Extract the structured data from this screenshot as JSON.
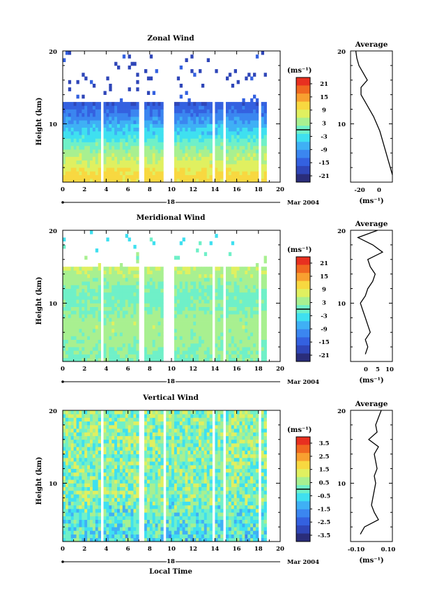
{
  "panels": [
    {
      "title": "Zonal Wind",
      "ylabel": "Height (km)",
      "y_ticks": [
        "20",
        "10"
      ],
      "x_ticks": [
        "0",
        "2",
        "4",
        "6",
        "8",
        "10",
        "12",
        "14",
        "16",
        "18",
        "20"
      ],
      "date_day": "18",
      "date_label": "Mar 2004",
      "colorbar_unit": "(ms⁻¹)",
      "colorbar_ticks": [
        "21",
        "15",
        "9",
        "3",
        "-3",
        "-9",
        "-15",
        "-21"
      ],
      "avg_title": "Average",
      "avg_y_ticks": [
        "20",
        "10"
      ],
      "avg_x_ticks": [
        "-20",
        "0"
      ],
      "avg_xlabel": "(ms⁻¹)"
    },
    {
      "title": "Meridional Wind",
      "ylabel": "Height (km)",
      "y_ticks": [
        "20",
        "10"
      ],
      "x_ticks": [
        "0",
        "2",
        "4",
        "6",
        "8",
        "10",
        "12",
        "14",
        "16",
        "18",
        "20"
      ],
      "date_day": "18",
      "date_label": "Mar 2004",
      "colorbar_unit": "(ms⁻¹)",
      "colorbar_ticks": [
        "21",
        "15",
        "9",
        "3",
        "-3",
        "-9",
        "-15",
        "-21"
      ],
      "avg_title": "Average",
      "avg_y_ticks": [
        "20",
        "10"
      ],
      "avg_x_ticks": [
        "0",
        "5",
        "10"
      ],
      "avg_xlabel": "(ms⁻¹)"
    },
    {
      "title": "Vertical Wind",
      "ylabel": "Height (km)",
      "y_ticks": [
        "20",
        "10"
      ],
      "x_ticks": [
        "0",
        "2",
        "4",
        "6",
        "8",
        "10",
        "12",
        "14",
        "16",
        "18",
        "20"
      ],
      "date_day": "18",
      "date_label": "Mar 2004",
      "xlabel": "Local Time",
      "colorbar_unit": "(ms⁻¹)",
      "colorbar_ticks": [
        "3.5",
        "2.5",
        "1.5",
        "0.5",
        "-0.5",
        "-1.5",
        "-2.5",
        "-3.5"
      ],
      "avg_title": "Average",
      "avg_y_ticks": [
        "20",
        "10"
      ],
      "avg_x_ticks": [
        "-0.10",
        "0.10"
      ],
      "avg_xlabel": "(ms⁻¹)"
    }
  ],
  "colors": {
    "palette": [
      "#2a2d7a",
      "#2f46b8",
      "#3461e0",
      "#3b86f0",
      "#3fb0f5",
      "#3fe0f0",
      "#6ff0c8",
      "#a8f090",
      "#e0f060",
      "#f8d840",
      "#f8a030",
      "#f06820",
      "#e83020"
    ]
  },
  "chart_data": [
    {
      "type": "heatmap",
      "title": "Zonal Wind",
      "xlabel": "",
      "ylabel": "Height (km)",
      "xlim": [
        0,
        20
      ],
      "ylim": [
        2,
        20
      ],
      "colorbar_range": [
        -24,
        24
      ],
      "data_gaps_hours": [
        [
          3.5,
          3.7
        ],
        [
          7.1,
          7.4
        ],
        [
          9.2,
          10.2
        ],
        [
          13.8,
          14.0
        ],
        [
          14.8,
          15.1
        ],
        [
          17.9,
          18.2
        ],
        [
          18.8,
          20
        ]
      ],
      "profile_by_height": [
        {
          "height_km": 3,
          "value": 11
        },
        {
          "height_km": 4,
          "value": 8
        },
        {
          "height_km": 5,
          "value": 6
        },
        {
          "height_km": 6,
          "value": 4
        },
        {
          "height_km": 7,
          "value": 1
        },
        {
          "height_km": 8,
          "value": -2
        },
        {
          "height_km": 9,
          "value": -5
        },
        {
          "height_km": 10,
          "value": -8
        },
        {
          "height_km": 11,
          "value": -11
        },
        {
          "height_km": 12,
          "value": -14
        },
        {
          "height_km": 13,
          "value": -16
        },
        {
          "height_km": 15,
          "value": -18
        },
        {
          "height_km": 18,
          "value": -18
        }
      ],
      "average_profile": {
        "xlim": [
          -30,
          10
        ],
        "height": [
          3,
          4,
          5,
          6,
          7,
          8,
          9,
          10,
          11,
          12,
          13,
          14,
          15,
          16,
          17,
          18,
          19,
          20
        ],
        "value": [
          10,
          8,
          6,
          4,
          2,
          0,
          -2,
          -5,
          -8,
          -12,
          -16,
          -20,
          -20,
          -14,
          -18,
          -22,
          -24,
          -25
        ]
      }
    },
    {
      "type": "heatmap",
      "title": "Meridional Wind",
      "xlabel": "",
      "ylabel": "Height (km)",
      "xlim": [
        0,
        20
      ],
      "ylim": [
        2,
        20
      ],
      "colorbar_range": [
        -24,
        24
      ],
      "data_gaps_hours": [
        [
          3.5,
          3.7
        ],
        [
          7.1,
          7.4
        ],
        [
          9.2,
          10.2
        ],
        [
          13.8,
          14.0
        ],
        [
          14.8,
          15.1
        ],
        [
          17.9,
          18.2
        ],
        [
          18.8,
          20
        ]
      ],
      "profile_by_height": [
        {
          "height_km": 3,
          "value": 1
        },
        {
          "height_km": 5,
          "value": 3
        },
        {
          "height_km": 7,
          "value": 4
        },
        {
          "height_km": 9,
          "value": 2
        },
        {
          "height_km": 11,
          "value": 0
        },
        {
          "height_km": 13,
          "value": 3
        },
        {
          "height_km": 15,
          "value": 6
        },
        {
          "height_km": 18,
          "value": -2
        }
      ],
      "average_profile": {
        "xlim": [
          -5,
          12
        ],
        "height": [
          3,
          4,
          5,
          6,
          7,
          8,
          9,
          10,
          11,
          12,
          13,
          14,
          15,
          16,
          17,
          18,
          19,
          20
        ],
        "value": [
          1,
          2,
          1,
          3,
          2,
          1,
          0,
          -1,
          1,
          2,
          4,
          5,
          3,
          2,
          8,
          4,
          -2,
          6
        ]
      }
    },
    {
      "type": "heatmap",
      "title": "Vertical Wind",
      "xlabel": "Local Time",
      "ylabel": "Height (km)",
      "xlim": [
        0,
        20
      ],
      "ylim": [
        2,
        20
      ],
      "colorbar_range": [
        -4,
        4
      ],
      "data_gaps_hours": [
        [
          3.5,
          3.7
        ],
        [
          7.1,
          7.4
        ],
        [
          9.2,
          9.4
        ],
        [
          13.8,
          14.0
        ],
        [
          14.8,
          15.1
        ],
        [
          17.9,
          18.2
        ],
        [
          18.8,
          20
        ]
      ],
      "profile_by_height": [
        {
          "height_km": 3,
          "value": -0.5
        },
        {
          "height_km": 8,
          "value": 0.2
        },
        {
          "height_km": 13,
          "value": 0.3
        },
        {
          "height_km": 18,
          "value": 0.4
        }
      ],
      "average_profile": {
        "xlim": [
          -0.15,
          0.15
        ],
        "height": [
          3,
          4,
          5,
          6,
          7,
          8,
          9,
          10,
          11,
          12,
          13,
          14,
          15,
          16,
          17,
          18,
          19,
          20
        ],
        "value": [
          -0.08,
          -0.05,
          0.05,
          0.02,
          0.0,
          0.01,
          0.02,
          0.03,
          0.02,
          0.04,
          0.03,
          0.02,
          0.05,
          -0.02,
          0.04,
          0.03,
          0.05,
          0.07
        ]
      }
    }
  ]
}
